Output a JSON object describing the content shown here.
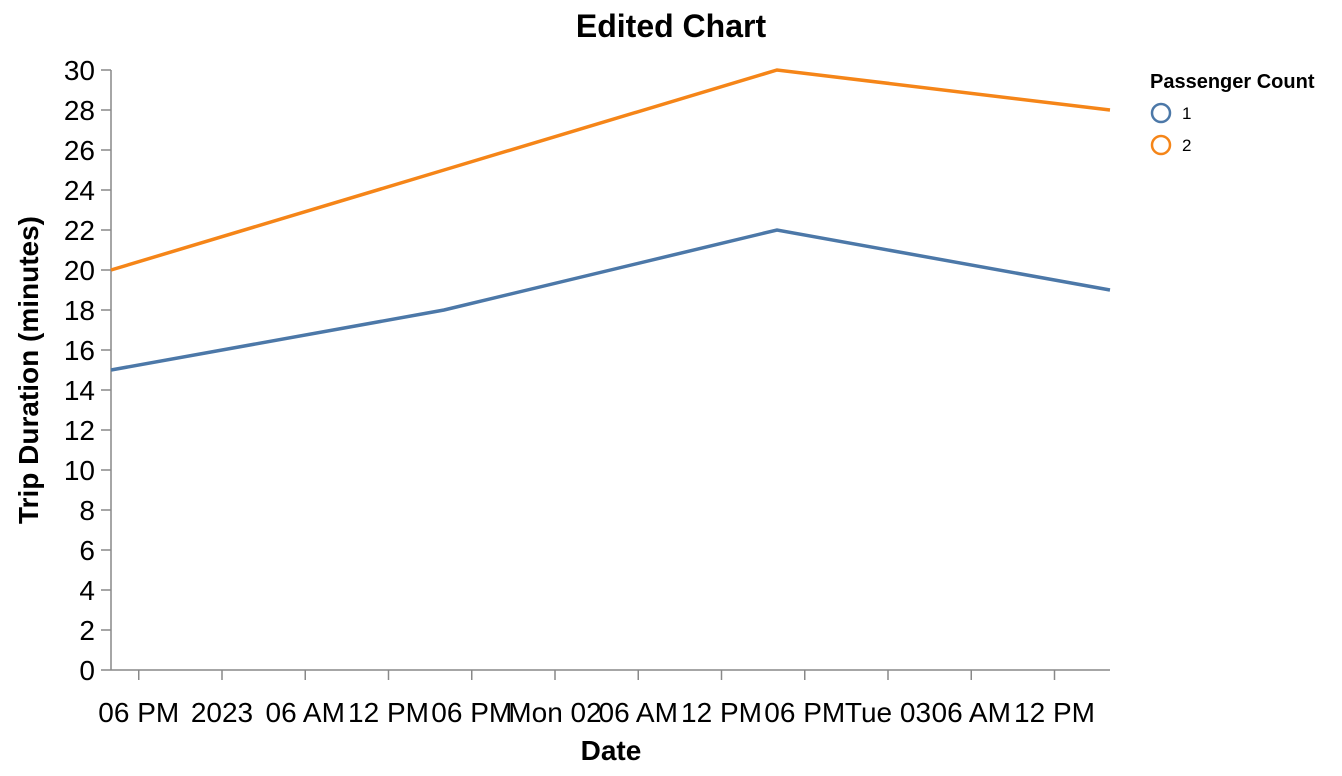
{
  "chart_data": {
    "type": "line",
    "title": "Edited Chart",
    "xlabel": "Date",
    "ylabel": "Trip Duration (minutes)",
    "ylim": [
      0,
      30
    ],
    "y_ticks": [
      0,
      2,
      4,
      6,
      8,
      10,
      12,
      14,
      16,
      18,
      20,
      22,
      24,
      26,
      28,
      30
    ],
    "xlim": [
      "2023-01-01T16:00",
      "2023-01-03T16:00"
    ],
    "x_ticks": [
      {
        "t": "2023-01-01T18:00",
        "label": "06 PM"
      },
      {
        "t": "2023-01-02T00:00",
        "label": "2023"
      },
      {
        "t": "2023-01-02T06:00",
        "label": "06 AM"
      },
      {
        "t": "2023-01-02T12:00",
        "label": "12 PM"
      },
      {
        "t": "2023-01-02T18:00",
        "label": "06 PM"
      },
      {
        "t": "2023-01-03T00:00",
        "label": "Mon 02"
      },
      {
        "t": "2023-01-03T06:00",
        "label": "06 AM"
      },
      {
        "t": "2023-01-03T12:00",
        "label": "12 PM"
      },
      {
        "t": "2023-01-03T18:00",
        "label": "06 PM"
      },
      {
        "t": "2023-01-04T00:00",
        "label": "Tue 03"
      },
      {
        "t": "2023-01-04T06:00",
        "label": "06 AM"
      },
      {
        "t": "2023-01-04T12:00",
        "label": "12 PM"
      }
    ],
    "grid": false,
    "legend": {
      "title": "Passenger Count",
      "position": "top-right"
    },
    "series": [
      {
        "name": "1",
        "color": "#4c78a8",
        "points": [
          {
            "x": "2023-01-01T16:00",
            "y": 15
          },
          {
            "x": "2023-01-02T16:00",
            "y": 18
          },
          {
            "x": "2023-01-03T16:00",
            "y": 22
          },
          {
            "x": "2023-01-04T16:00",
            "y": 19
          }
        ]
      },
      {
        "name": "2",
        "color": "#f58518",
        "points": [
          {
            "x": "2023-01-01T16:00",
            "y": 20
          },
          {
            "x": "2023-01-02T16:00",
            "y": 25
          },
          {
            "x": "2023-01-03T16:00",
            "y": 30
          },
          {
            "x": "2023-01-04T16:00",
            "y": 28
          }
        ]
      }
    ]
  }
}
